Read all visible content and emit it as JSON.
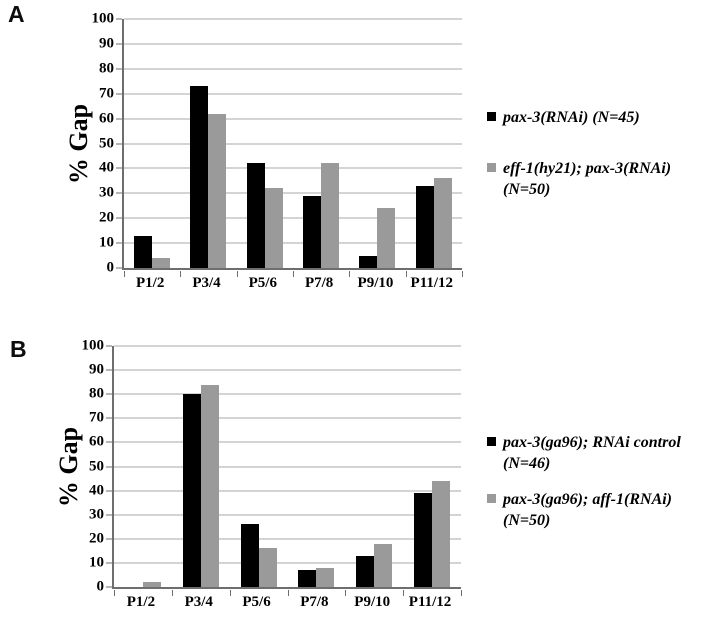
{
  "chart_data": [
    {
      "type": "bar",
      "panel_label": "A",
      "ylabel": "% Gap",
      "ylim": [
        0,
        100
      ],
      "ytick_step": 10,
      "grid": true,
      "legend_position": "right",
      "categories": [
        "P1/2",
        "P3/4",
        "P5/6",
        "P7/8",
        "P9/10",
        "P11/12"
      ],
      "series": [
        {
          "name": "pax-3(RNAi) (N=45)",
          "color": "#000000",
          "values": [
            13,
            73,
            42,
            29,
            5,
            33
          ]
        },
        {
          "name": "eff-1(hy21); pax-3(RNAi) (N=50)",
          "color": "#9a9a9a",
          "values": [
            4,
            62,
            32,
            42,
            24,
            36
          ]
        }
      ]
    },
    {
      "type": "bar",
      "panel_label": "B",
      "ylabel": "% Gap",
      "ylim": [
        0,
        100
      ],
      "ytick_step": 10,
      "grid": true,
      "legend_position": "right",
      "categories": [
        "P1/2",
        "P3/4",
        "P5/6",
        "P7/8",
        "P9/10",
        "P11/12"
      ],
      "series": [
        {
          "name": "pax-3(ga96); RNAi control (N=46)",
          "color": "#000000",
          "values": [
            0,
            80,
            26,
            7,
            13,
            39
          ]
        },
        {
          "name": "pax-3(ga96); aff-1(RNAi) (N=50)",
          "color": "#9a9a9a",
          "values": [
            2,
            84,
            16,
            8,
            18,
            44
          ]
        }
      ]
    }
  ],
  "colors": {
    "series1": "#000000",
    "series2": "#9a9a9a",
    "gridline": "#a9a9a9",
    "axis": "#6e6e6e"
  }
}
